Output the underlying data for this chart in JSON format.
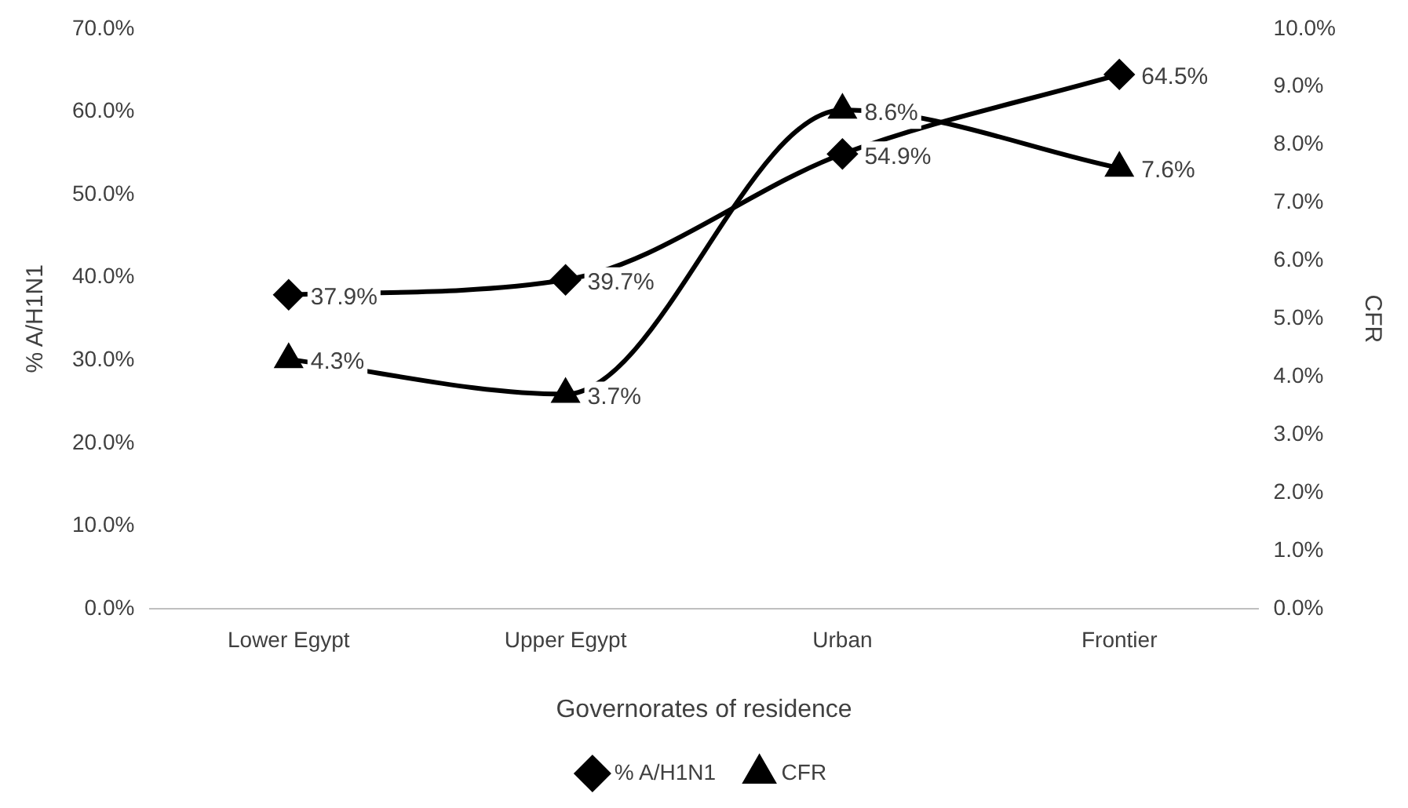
{
  "chart_data": {
    "type": "line",
    "xlabel": "Governorates of residence",
    "ylabel": "% A/H1N1",
    "y2label": "CFR",
    "categories": [
      "Lower Egypt",
      "Upper Egypt",
      "Urban",
      "Frontier"
    ],
    "series": [
      {
        "name": "% A/H1N1",
        "color": "#000000",
        "marker": "diamond",
        "values": [
          37.9,
          39.7,
          54.9,
          64.5
        ],
        "value_labels": [
          "37.9%",
          "39.7%",
          "54.9%",
          "64.5%"
        ]
      },
      {
        "name": "CFR",
        "color": "#000000",
        "marker": "triangle",
        "axis": "y2",
        "values": [
          4.3,
          3.7,
          8.6,
          7.6
        ],
        "value_labels": [
          "4.3%",
          "3.7%",
          "8.6%",
          "7.6%"
        ]
      }
    ],
    "ylim": [
      0,
      70
    ],
    "yticks": [
      {
        "value": 0,
        "label": "0.0%"
      },
      {
        "value": 10,
        "label": "10.0%"
      },
      {
        "value": 20,
        "label": "20.0%"
      },
      {
        "value": 30,
        "label": "30.0%"
      },
      {
        "value": 40,
        "label": "40.0%"
      },
      {
        "value": 50,
        "label": "50.0%"
      },
      {
        "value": 60,
        "label": "60.0%"
      },
      {
        "value": 70,
        "label": "70.0%"
      }
    ],
    "y2lim": [
      0,
      10
    ],
    "y2ticks": [
      {
        "value": 0,
        "label": "0.0%"
      },
      {
        "value": 1,
        "label": "1.0%"
      },
      {
        "value": 2,
        "label": "2.0%"
      },
      {
        "value": 3,
        "label": "3.0%"
      },
      {
        "value": 4,
        "label": "4.0%"
      },
      {
        "value": 5,
        "label": "5.0%"
      },
      {
        "value": 6,
        "label": "6.0%"
      },
      {
        "value": 7,
        "label": "7.0%"
      },
      {
        "value": 8,
        "label": "8.0%"
      },
      {
        "value": 9,
        "label": "9.0%"
      },
      {
        "value": 10,
        "label": "10.0%"
      }
    ],
    "grid": false,
    "legend": "bottom",
    "line_style": "solid"
  }
}
